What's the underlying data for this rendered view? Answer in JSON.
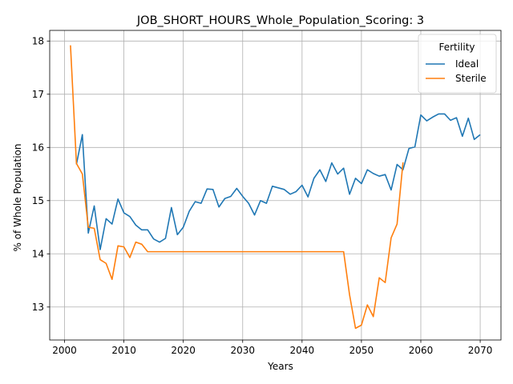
{
  "chart_data": {
    "type": "line",
    "title": "JOB_SHORT_HOURS_Whole_Population_Scoring: 3",
    "xlabel": "Years",
    "ylabel": "% of Whole Population",
    "xlim": [
      1997.5,
      2073.5
    ],
    "ylim": [
      12.38,
      18.2
    ],
    "xticks": [
      2000,
      2010,
      2020,
      2030,
      2040,
      2050,
      2060,
      2070
    ],
    "yticks": [
      13,
      14,
      15,
      16,
      17,
      18
    ],
    "grid": true,
    "legend": {
      "title": "Fertility",
      "placement": "top-right"
    },
    "series": [
      {
        "name": "Ideal",
        "color": "#1f77b4",
        "x": [
          2002,
          2003,
          2004,
          2005,
          2006,
          2007,
          2008,
          2009,
          2010,
          2011,
          2012,
          2013,
          2014,
          2015,
          2016,
          2017,
          2018,
          2019,
          2020,
          2021,
          2022,
          2023,
          2024,
          2025,
          2026,
          2027,
          2028,
          2029,
          2030,
          2031,
          2032,
          2033,
          2034,
          2035,
          2036,
          2037,
          2038,
          2039,
          2040,
          2041,
          2042,
          2043,
          2044,
          2045,
          2046,
          2047,
          2048,
          2049,
          2050,
          2051,
          2052,
          2053,
          2054,
          2055,
          2056,
          2057,
          2058,
          2059,
          2060,
          2061,
          2062,
          2063,
          2064,
          2065,
          2066,
          2067,
          2068,
          2069,
          2070
        ],
        "values": [
          15.68,
          16.24,
          14.39,
          14.9,
          14.08,
          14.66,
          14.56,
          15.03,
          14.77,
          14.7,
          14.54,
          14.45,
          14.45,
          14.28,
          14.22,
          14.29,
          14.87,
          14.36,
          14.5,
          14.8,
          14.98,
          14.95,
          15.22,
          15.21,
          14.88,
          15.04,
          15.08,
          15.23,
          15.08,
          14.95,
          14.73,
          15.0,
          14.95,
          15.27,
          15.24,
          15.21,
          15.12,
          15.17,
          15.29,
          15.07,
          15.42,
          15.58,
          15.36,
          15.71,
          15.5,
          15.61,
          15.12,
          15.42,
          15.32,
          15.58,
          15.51,
          15.46,
          15.49,
          15.2,
          15.68,
          15.58,
          15.98,
          16.01,
          16.61,
          16.5,
          16.57,
          16.63,
          16.63,
          16.51,
          16.56,
          16.21,
          16.55,
          16.15,
          16.24
        ]
      },
      {
        "name": "Sterile",
        "color": "#ff7f0e",
        "x": [
          2001,
          2002,
          2003,
          2004,
          2005,
          2006,
          2007,
          2008,
          2009,
          2010,
          2011,
          2012,
          2013,
          2014,
          2015,
          2016,
          2017,
          2018,
          2019,
          2020,
          2021,
          2022,
          2023,
          2024,
          2025,
          2026,
          2027,
          2028,
          2029,
          2030,
          2031,
          2032,
          2033,
          2034,
          2035,
          2036,
          2037,
          2038,
          2039,
          2040,
          2041,
          2042,
          2043,
          2044,
          2045,
          2046,
          2047,
          2048,
          2049,
          2050,
          2051,
          2052,
          2053,
          2054,
          2055,
          2056,
          2057
        ],
        "values": [
          17.92,
          15.7,
          15.5,
          14.5,
          14.48,
          13.89,
          13.82,
          13.52,
          14.15,
          14.13,
          13.93,
          14.22,
          14.18,
          14.04,
          14.04,
          14.04,
          14.04,
          14.04,
          14.04,
          14.04,
          14.04,
          14.04,
          14.04,
          14.04,
          14.04,
          14.04,
          14.04,
          14.04,
          14.04,
          14.04,
          14.04,
          14.04,
          14.04,
          14.04,
          14.04,
          14.04,
          14.04,
          14.04,
          14.04,
          14.04,
          14.04,
          14.04,
          14.04,
          14.04,
          14.04,
          14.04,
          14.04,
          13.23,
          12.6,
          12.66,
          13.04,
          12.82,
          13.55,
          13.46,
          14.3,
          14.56,
          15.72
        ]
      }
    ]
  }
}
